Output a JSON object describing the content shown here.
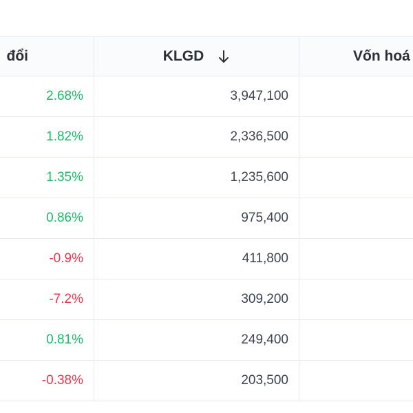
{
  "table": {
    "headers": {
      "change": "đổi",
      "volume": "KLGD",
      "market_cap": "Vốn hoá"
    },
    "sort": {
      "column": "volume",
      "direction": "descending",
      "icon": "arrow-down-icon"
    },
    "colors": {
      "positive": "#1fb86a",
      "negative": "#e8364f",
      "text": "#3d4450",
      "border": "#e6e9ef"
    },
    "rows": [
      {
        "change": "2.68%",
        "direction": "up",
        "volume": "3,947,100"
      },
      {
        "change": "1.82%",
        "direction": "up",
        "volume": "2,336,500"
      },
      {
        "change": "1.35%",
        "direction": "up",
        "volume": "1,235,600"
      },
      {
        "change": "0.86%",
        "direction": "up",
        "volume": "975,400"
      },
      {
        "change": "-0.9%",
        "direction": "down",
        "volume": "411,800"
      },
      {
        "change": "-7.2%",
        "direction": "down",
        "volume": "309,200"
      },
      {
        "change": "0.81%",
        "direction": "up",
        "volume": "249,400"
      },
      {
        "change": "-0.38%",
        "direction": "down",
        "volume": "203,500"
      }
    ]
  }
}
